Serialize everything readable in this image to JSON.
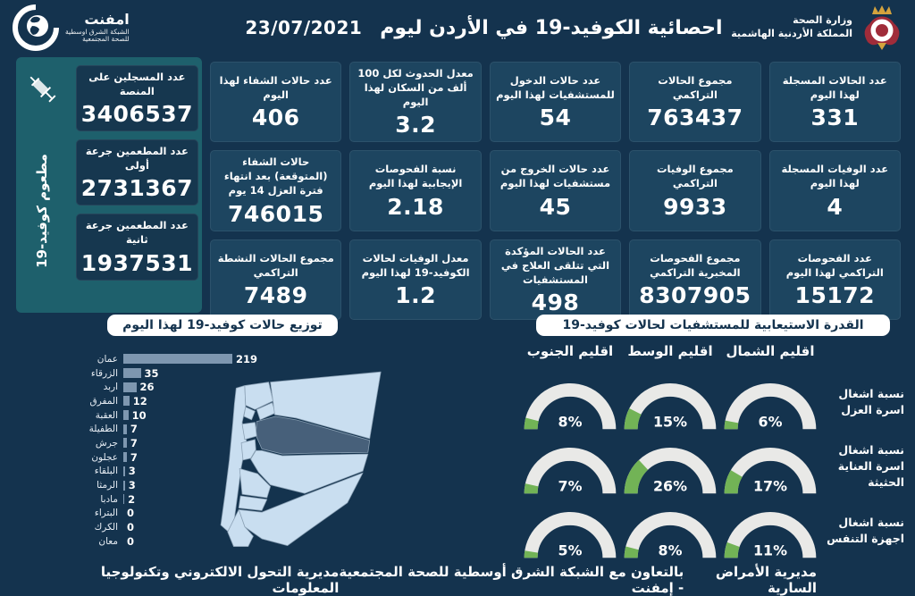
{
  "header": {
    "title": "احصائية الكوفيد-19 في الأردن ليوم",
    "date": "23/07/2021",
    "moh_name": "وزارة الصحة",
    "moh_sub": "المملكة الأردنية الهاشمية",
    "emphnet_name": "امفنت",
    "emphnet_sub1": "الشبكة الشرق اوسطية",
    "emphnet_sub2": "للصحة المجتمعية"
  },
  "vaccine_panel": {
    "side_label": "مطعوم كوفيد-19",
    "boxes": [
      {
        "label": "عدد المسجلين على المنصة",
        "value": "3406537"
      },
      {
        "label": "عدد المطعمين جرعة أولى",
        "value": "2731367"
      },
      {
        "label": "عدد المطعمين جرعة ثانية",
        "value": "1937531"
      }
    ]
  },
  "stat_boxes": [
    {
      "label": "عدد حالات الشفاء لهذا اليوم",
      "value": "406"
    },
    {
      "label": "معدل الحدوث لكل 100 ألف من السكان لهذا اليوم",
      "value": "3.2"
    },
    {
      "label": "عدد حالات الدخول للمستشفيات لهذا اليوم",
      "value": "54"
    },
    {
      "label": "مجموع الحالات التراكمي",
      "value": "763437"
    },
    {
      "label": "عدد الحالات المسجلة لهذا اليوم",
      "value": "331"
    },
    {
      "label": "حالات الشفاء (المتوقعة) بعد انتهاء فترة العزل 14 يوم",
      "value": "746015"
    },
    {
      "label": "نسبة الفحوصات الإيجابية لهذا اليوم",
      "value": "2.18"
    },
    {
      "label": "عدد حالات الخروج من مستشفيات لهذا اليوم",
      "value": "45"
    },
    {
      "label": "مجموع الوفيات التراكمي",
      "value": "9933"
    },
    {
      "label": "عدد الوفيات المسجلة لهذا اليوم",
      "value": "4"
    },
    {
      "label": "مجموع الحالات النشطة التراكمي",
      "value": "7489"
    },
    {
      "label": "معدل الوفيات لحالات الكوفيد-19 لهذا اليوم",
      "value": "1.2"
    },
    {
      "label": "عدد الحالات المؤكدة التي تتلقى العلاج في المستشفيات",
      "value": "498"
    },
    {
      "label": "مجموع الفحوصات المخبرية التراكمي",
      "value": "8307905"
    },
    {
      "label": "عدد الفحوصات التراكمي لهذا اليوم",
      "value": "15172"
    }
  ],
  "chart_data": [
    {
      "type": "bar",
      "orientation": "horizontal",
      "title": "توزيع حالات كوفيد-19 لهذا اليوم",
      "categories": [
        "عمان",
        "الزرقاء",
        "اربد",
        "المفرق",
        "العقبة",
        "الطفيلة",
        "جرش",
        "عجلون",
        "البلقاء",
        "الرمثا",
        "مادبا",
        "البتراء",
        "الكرك",
        "معان"
      ],
      "values": [
        219,
        35,
        26,
        12,
        10,
        7,
        7,
        7,
        3,
        3,
        2,
        0,
        0,
        0
      ],
      "xlim": [
        0,
        240
      ],
      "value_labels": true
    },
    {
      "type": "gauge",
      "title": "القدرة الاستيعابية للمستشفيات لحالات كوفيد-19",
      "unit": "%",
      "columns": [
        "اقليم الشمال",
        "اقليم الوسط",
        "اقليم الجنوب"
      ],
      "rows": [
        {
          "label": "نسبة اشغال اسرة العزل",
          "values_pct": [
            6,
            15,
            8
          ]
        },
        {
          "label": "نسبة اشغال اسرة العناية الحثيثة",
          "values_pct": [
            17,
            26,
            7
          ]
        },
        {
          "label": "نسبة اشغال اجهزة التنفس",
          "values_pct": [
            11,
            8,
            5
          ]
        }
      ],
      "range_pct": [
        0,
        100
      ]
    }
  ],
  "footer": {
    "left": "مديرية التحول الالكتروني وتكنولوجيا المعلومات",
    "center": "بالتعاون مع الشبكة الشرق أوسطية للصحة المجتمعية - إمفنت",
    "right": "مديرية الأمراض السارية"
  },
  "colors": {
    "background": "#14334e",
    "box": "#1d4560",
    "box_dark": "#16374f",
    "teal": "#1e606c",
    "bar": "#7e97b0",
    "gauge_track": "#e9e9e7",
    "gauge_green": "#72b356",
    "map_light": "#c9def0",
    "map_dark": "#47607a",
    "crest_red": "#a02c3a",
    "crest_gold": "#d4a33d"
  }
}
